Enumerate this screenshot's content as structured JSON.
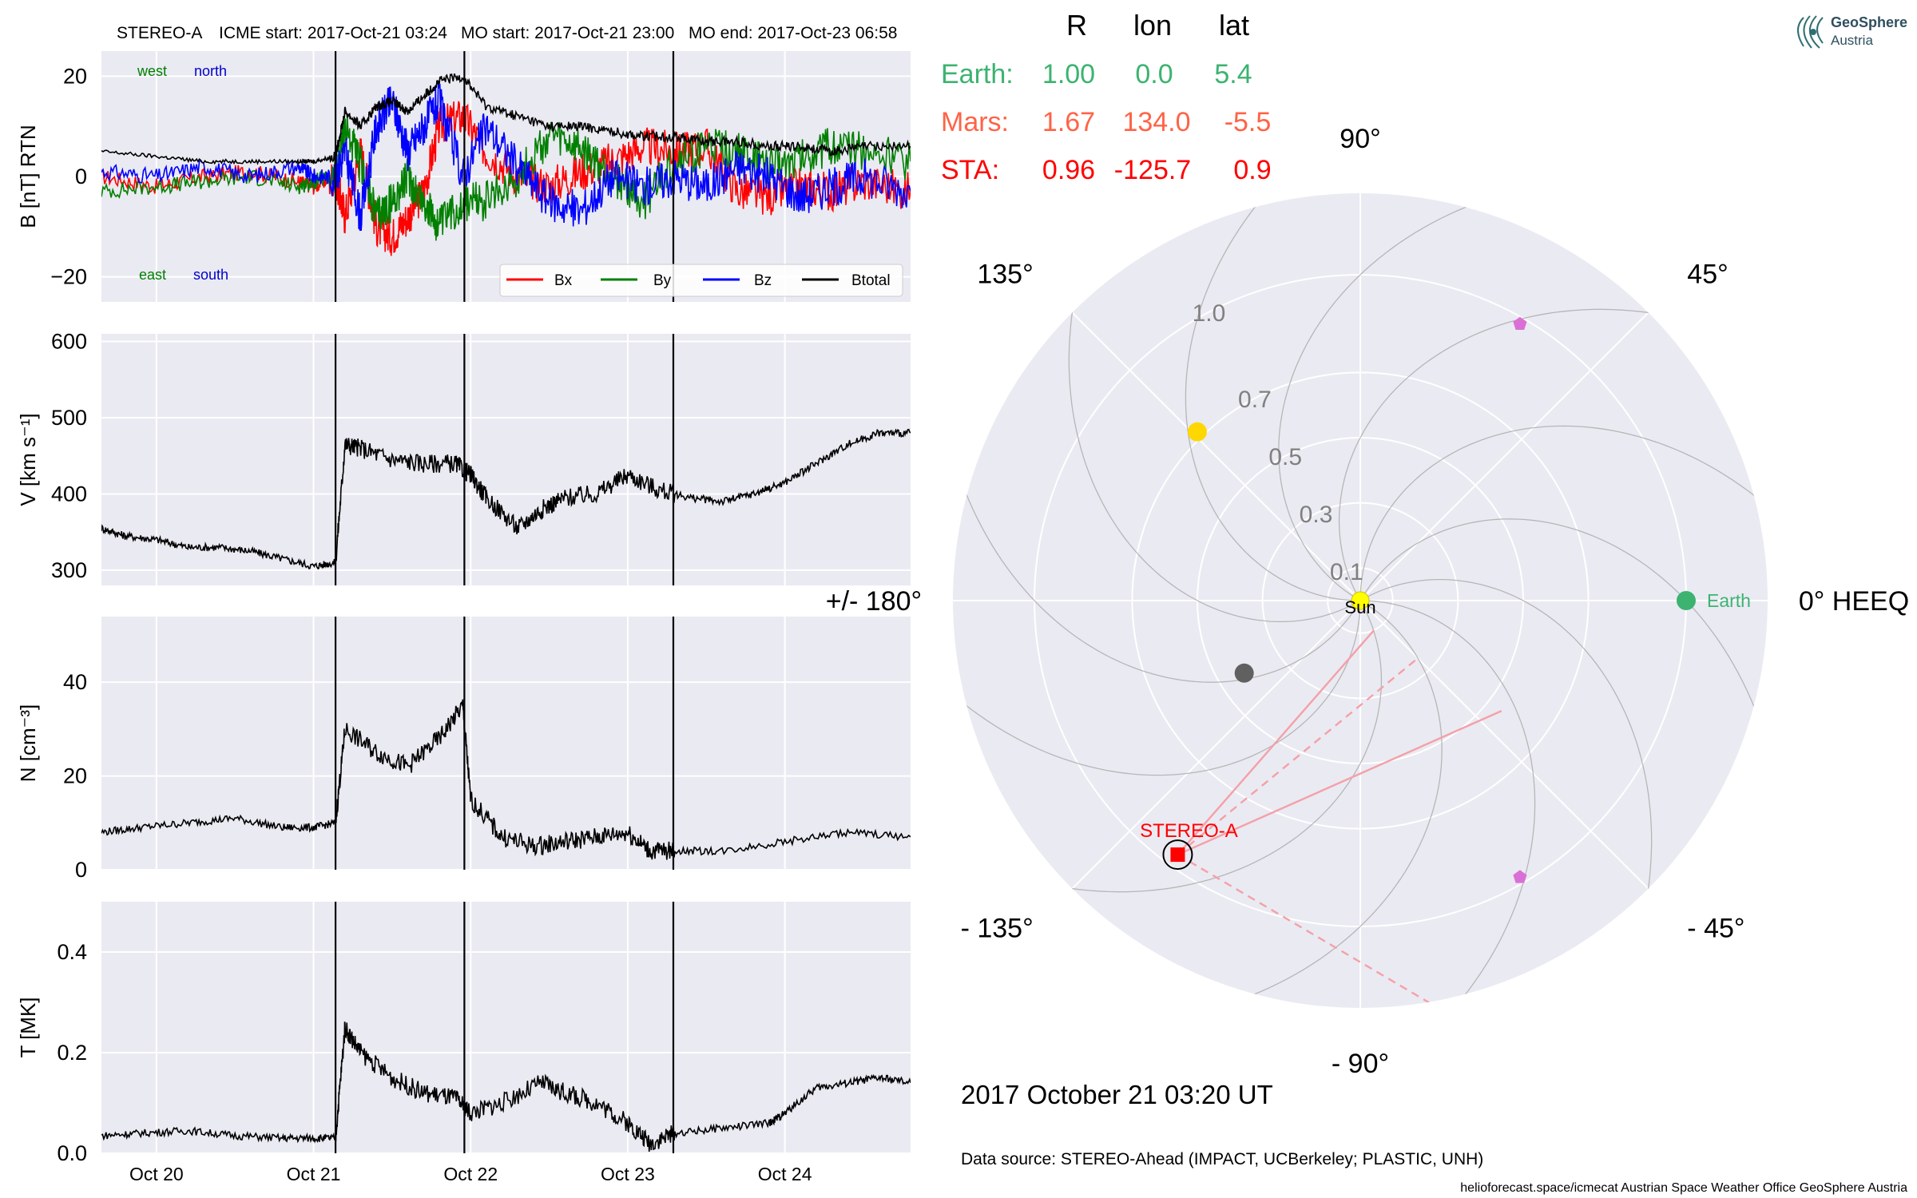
{
  "header": {
    "spacecraft": "STEREO-A",
    "icme_start": "ICME start: 2017-Oct-21 03:24",
    "mo_start": "MO start: 2017-Oct-21 23:00",
    "mo_end": "MO end: 2017-Oct-23 06:58"
  },
  "logo": {
    "line1": "GeoSphere",
    "line2": "Austria"
  },
  "position_table": {
    "headers": [
      "R",
      "lon",
      "lat"
    ],
    "rows": [
      {
        "name": "Earth:",
        "R": "1.00",
        "lon": "0.0",
        "lat": "5.4",
        "color": "#3cb371"
      },
      {
        "name": "Mars:",
        "R": "1.67",
        "lon": "134.0",
        "lat": "-5.5",
        "color": "#ff6347"
      },
      {
        "name": "STA:",
        "R": "0.96",
        "lon": "-125.7",
        "lat": "0.9",
        "color": "#ff0000"
      }
    ]
  },
  "timestamp": "2017 October 21  03:20 UT",
  "data_source": "Data source: STEREO-Ahead (IMPACT, UCBerkeley; PLASTIC, UNH)",
  "credits": "helioforecast.space/icmecat   Austrian Space Weather Office   GeoSphere Austria",
  "chart_data": [
    {
      "type": "line",
      "ylabel": "B [nT] RTN",
      "ylim": [
        -25,
        25
      ],
      "yticks": [
        {
          "v": 20,
          "label": "20"
        },
        {
          "v": 0,
          "label": "0"
        },
        {
          "v": -20,
          "label": "−20"
        }
      ],
      "annotations": {
        "west": "west",
        "north": "north",
        "east": "east",
        "south": "south"
      },
      "legend": {
        "placement": "lower-right",
        "items": [
          {
            "name": "Bx",
            "color": "#ff0000"
          },
          {
            "name": "By",
            "color": "#008000"
          },
          {
            "name": "Bz",
            "color": "#0000ff"
          },
          {
            "name": "Btotal",
            "color": "#000000"
          }
        ]
      },
      "series": [
        {
          "name": "Bx",
          "color": "#ff0000",
          "x": [
            19.65,
            20.0,
            20.3,
            20.6,
            20.9,
            21.0,
            21.14,
            21.2,
            21.3,
            21.4,
            21.5,
            21.6,
            21.7,
            21.8,
            21.95,
            22.1,
            22.3,
            22.5,
            22.7,
            22.9,
            23.1,
            23.3,
            23.5,
            23.7,
            23.9,
            24.1,
            24.3,
            24.5,
            24.8
          ],
          "y": [
            0,
            -2,
            0,
            1,
            -1,
            -2,
            0,
            -8,
            5,
            -10,
            -12,
            -8,
            -3,
            10,
            12,
            5,
            0,
            -2,
            1,
            3,
            6,
            5,
            6,
            -3,
            -4,
            -2,
            -3,
            -1,
            -3
          ]
        },
        {
          "name": "By",
          "color": "#008000",
          "x": [
            19.65,
            20.0,
            20.3,
            20.6,
            20.9,
            21.0,
            21.14,
            21.2,
            21.3,
            21.4,
            21.5,
            21.6,
            21.7,
            21.8,
            21.95,
            22.1,
            22.3,
            22.5,
            22.7,
            22.9,
            23.1,
            23.3,
            23.5,
            23.7,
            23.9,
            24.1,
            24.3,
            24.5,
            24.8
          ],
          "y": [
            -3,
            -2,
            -1,
            0,
            -2,
            -1,
            0,
            10,
            2,
            -8,
            -5,
            0,
            -5,
            -10,
            -5,
            -5,
            0,
            8,
            5,
            0,
            -5,
            3,
            6,
            5,
            2,
            4,
            6,
            5,
            3
          ]
        },
        {
          "name": "Bz",
          "color": "#0000ff",
          "x": [
            19.65,
            20.0,
            20.3,
            20.6,
            20.9,
            21.0,
            21.14,
            21.2,
            21.3,
            21.4,
            21.5,
            21.6,
            21.7,
            21.8,
            21.95,
            22.1,
            22.3,
            22.5,
            22.7,
            22.9,
            23.1,
            23.3,
            23.5,
            23.7,
            23.9,
            24.1,
            24.3,
            24.5,
            24.8
          ],
          "y": [
            1,
            0,
            2,
            0,
            2,
            0,
            0,
            5,
            -8,
            10,
            15,
            5,
            10,
            15,
            0,
            10,
            2,
            -5,
            -7,
            0,
            -2,
            0,
            -2,
            2,
            0,
            -4,
            -2,
            0,
            -3
          ]
        },
        {
          "name": "Btotal",
          "color": "#000000",
          "x": [
            19.65,
            20.0,
            20.3,
            20.6,
            20.9,
            21.0,
            21.14,
            21.2,
            21.3,
            21.4,
            21.5,
            21.6,
            21.7,
            21.8,
            21.95,
            22.1,
            22.3,
            22.5,
            22.7,
            22.9,
            23.1,
            23.3,
            23.5,
            23.7,
            23.9,
            24.1,
            24.3,
            24.5,
            24.8
          ],
          "y": [
            5,
            4,
            3,
            3,
            3,
            3,
            4,
            13,
            10,
            14,
            15,
            13,
            16,
            19,
            20,
            14,
            12,
            10,
            10,
            9,
            8,
            8,
            7,
            7,
            6,
            6,
            5,
            6,
            6
          ]
        }
      ]
    },
    {
      "type": "line",
      "ylabel": "V [km s⁻¹]",
      "ylim": [
        280,
        610
      ],
      "yticks": [
        {
          "v": 600,
          "label": "600"
        },
        {
          "v": 500,
          "label": "500"
        },
        {
          "v": 400,
          "label": "400"
        },
        {
          "v": 300,
          "label": "300"
        }
      ],
      "series": [
        {
          "name": "V",
          "color": "#000000",
          "x": [
            19.65,
            19.8,
            20.0,
            20.2,
            20.4,
            20.6,
            20.8,
            21.0,
            21.14,
            21.2,
            21.3,
            21.5,
            21.7,
            21.9,
            22.0,
            22.1,
            22.3,
            22.45,
            22.6,
            22.8,
            23.0,
            23.2,
            23.4,
            23.6,
            23.8,
            24.0,
            24.2,
            24.4,
            24.6,
            24.8
          ],
          "y": [
            355,
            345,
            340,
            330,
            330,
            325,
            315,
            305,
            310,
            465,
            460,
            445,
            440,
            440,
            425,
            395,
            355,
            380,
            395,
            400,
            425,
            405,
            395,
            390,
            400,
            415,
            440,
            465,
            480,
            480
          ]
        }
      ]
    },
    {
      "type": "line",
      "ylabel": "N [cm⁻³]",
      "ylim": [
        0,
        54
      ],
      "yticks": [
        {
          "v": 40,
          "label": "40"
        },
        {
          "v": 20,
          "label": "20"
        },
        {
          "v": 0,
          "label": "0"
        }
      ],
      "series": [
        {
          "name": "N",
          "color": "#000000",
          "x": [
            19.65,
            19.9,
            20.2,
            20.5,
            20.8,
            21.0,
            21.14,
            21.2,
            21.4,
            21.6,
            21.8,
            21.95,
            22.0,
            22.2,
            22.4,
            22.6,
            22.8,
            23.0,
            23.14,
            23.3,
            23.6,
            24.0,
            24.4,
            24.8
          ],
          "y": [
            8,
            9,
            10,
            11,
            9,
            9,
            10,
            30,
            25,
            22,
            28,
            35,
            15,
            7,
            5,
            6,
            7,
            8,
            4,
            4,
            4,
            6,
            8,
            7
          ]
        }
      ]
    },
    {
      "type": "line",
      "ylabel": "T [MK]",
      "ylim": [
        0,
        0.5
      ],
      "yticks": [
        {
          "v": 0.4,
          "label": "0.4"
        },
        {
          "v": 0.2,
          "label": "0.2"
        },
        {
          "v": 0.0,
          "label": "0.0"
        }
      ],
      "xticks": [
        "Oct 20",
        "Oct 21",
        "Oct 22",
        "Oct 23",
        "Oct 24"
      ],
      "series": [
        {
          "name": "T",
          "color": "#000000",
          "x": [
            19.65,
            19.9,
            20.2,
            20.5,
            20.8,
            21.0,
            21.14,
            21.2,
            21.3,
            21.5,
            21.7,
            21.9,
            22.0,
            22.2,
            22.45,
            22.6,
            22.8,
            23.0,
            23.14,
            23.3,
            23.6,
            23.9,
            24.0,
            24.2,
            24.4,
            24.6,
            24.8
          ],
          "y": [
            0.035,
            0.04,
            0.045,
            0.035,
            0.03,
            0.03,
            0.03,
            0.25,
            0.2,
            0.15,
            0.12,
            0.11,
            0.08,
            0.1,
            0.14,
            0.12,
            0.1,
            0.06,
            0.02,
            0.04,
            0.05,
            0.06,
            0.08,
            0.13,
            0.14,
            0.15,
            0.14
          ]
        }
      ]
    }
  ],
  "event_lines_days": [
    21.14,
    21.96,
    23.29
  ],
  "polar_plot": {
    "type": "scatter",
    "coordinate_system": "HEEQ",
    "angle_labels": [
      {
        "deg": 90,
        "label": "90°"
      },
      {
        "deg": 45,
        "label": "45°"
      },
      {
        "deg": 0,
        "label": "0° HEEQ"
      },
      {
        "deg": -45,
        "label": "- 45°"
      },
      {
        "deg": -90,
        "label": "- 90°"
      },
      {
        "deg": -135,
        "label": "- 135°"
      },
      {
        "deg": 180,
        "label": "+/- 180°"
      },
      {
        "deg": 135,
        "label": "135°"
      }
    ],
    "radial_labels": [
      {
        "r": 0.1,
        "label": "0.1"
      },
      {
        "r": 0.3,
        "label": "0.3"
      },
      {
        "r": 0.5,
        "label": "0.5"
      },
      {
        "r": 0.7,
        "label": "0.7"
      },
      {
        "r": 1.0,
        "label": "1.0"
      }
    ],
    "rmax": 1.25,
    "bodies": [
      {
        "name": "Sun",
        "label": "Sun",
        "r": 0.0,
        "lon": 0,
        "color": "#ffff00",
        "marker": "circle"
      },
      {
        "name": "Earth",
        "label": "Earth",
        "r": 1.0,
        "lon": 0.0,
        "color": "#3cb371",
        "marker": "circle"
      },
      {
        "name": "Venus",
        "label": "",
        "r": 0.72,
        "lon": 134.0,
        "color": "#ffd700",
        "marker": "circle"
      },
      {
        "name": "Mercury",
        "label": "",
        "r": 0.42,
        "lon": -148.0,
        "color": "#606060",
        "marker": "circle"
      },
      {
        "name": "STEREO-A",
        "label": "STEREO-A",
        "r": 0.96,
        "lon": -125.7,
        "color": "#ff0000",
        "marker": "square"
      },
      {
        "name": "probe-1",
        "label": "",
        "r": 0.98,
        "lon": 60.0,
        "color": "#da70d6",
        "marker": "pentagon"
      },
      {
        "name": "probe-2",
        "label": "",
        "r": 0.98,
        "lon": -60.0,
        "color": "#da70d6",
        "marker": "pentagon"
      }
    ],
    "fov_lines": [
      {
        "r": 0.1,
        "lon": -65,
        "style": "solid"
      },
      {
        "r": 0.55,
        "lon": -38,
        "style": "solid"
      },
      {
        "r": 0.25,
        "lon": -45,
        "style": "dashed"
      },
      {
        "r": 1.34,
        "lon": -76,
        "style": "dashed"
      }
    ]
  }
}
